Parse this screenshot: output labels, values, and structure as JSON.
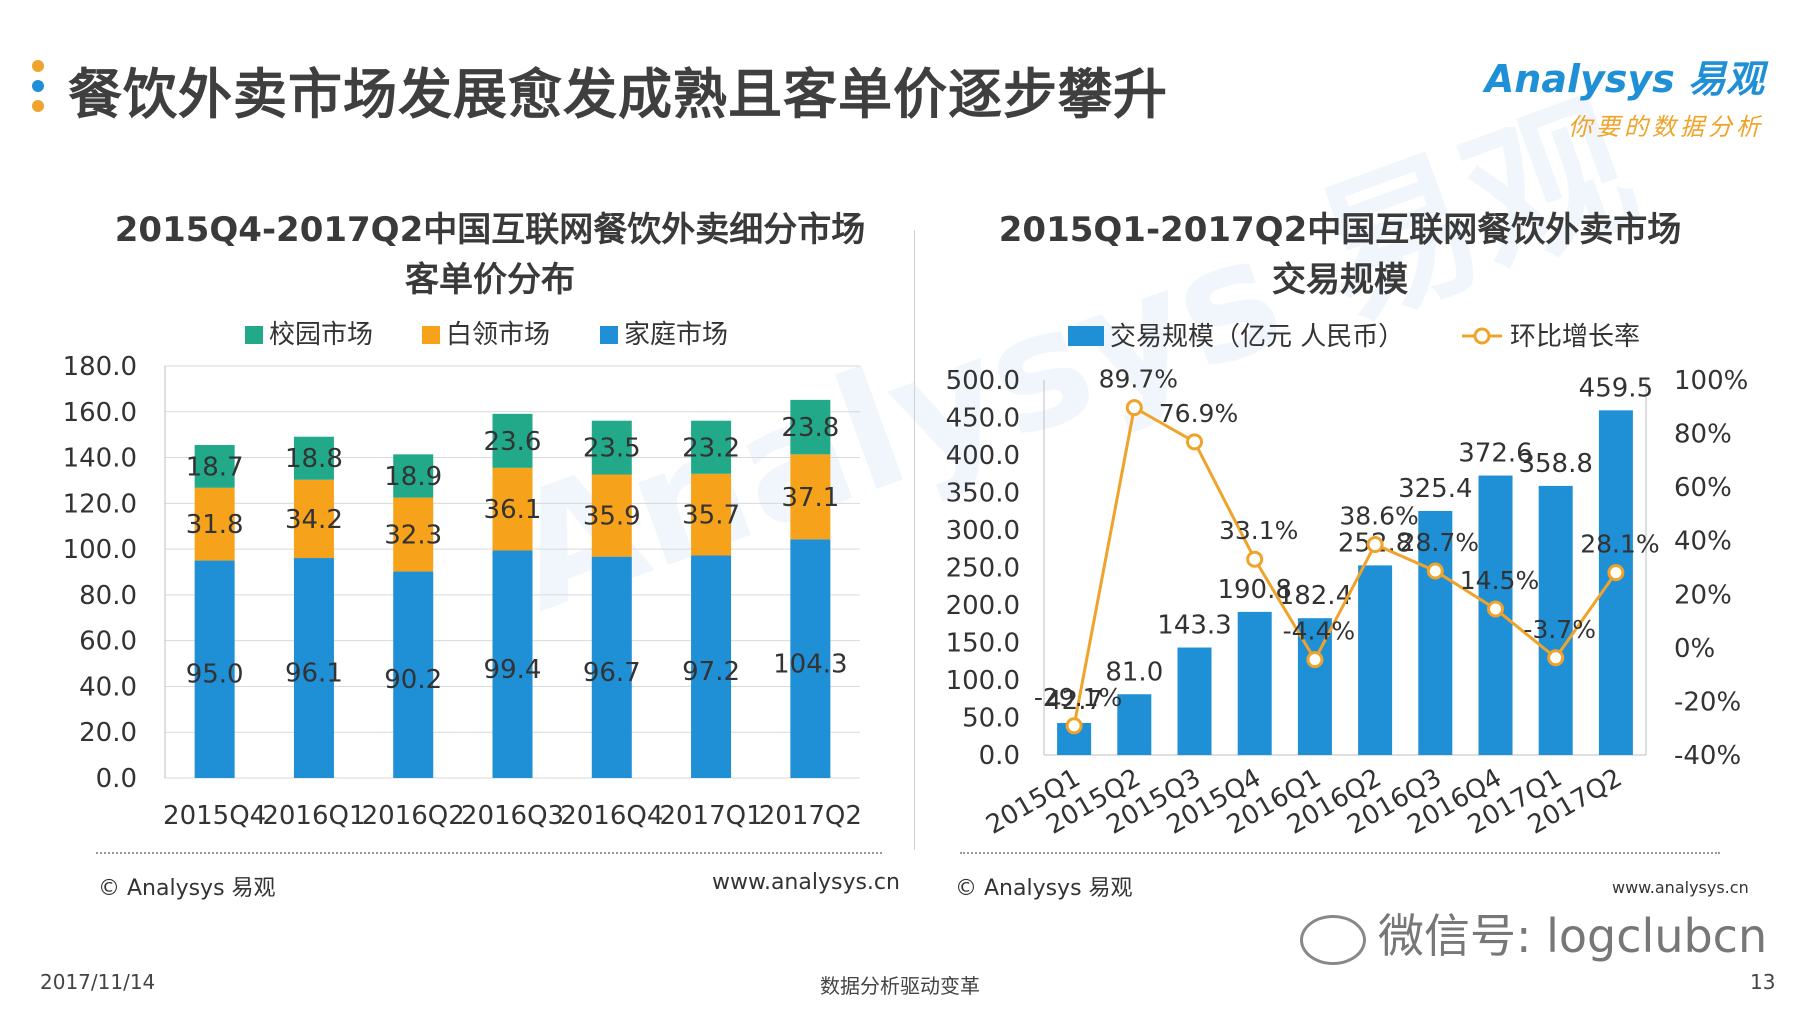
{
  "page": {
    "title": "餐饮外卖市场发展愈发成熟且客单价逐步攀升",
    "dots_colors": [
      "#f0a32a",
      "#1f8fd6",
      "#f0a32a"
    ],
    "logo_main": "Analysys 易观",
    "logo_sub": "你要的数据分析",
    "watermark": "Analysys 易观",
    "date": "2017/11/14",
    "footer_center": "数据分析驱动变革",
    "page_number": "13",
    "wechat": "微信号: logclubcn"
  },
  "left": {
    "title_line1": "2015Q4-2017Q2中国互联网餐饮外卖细分市场",
    "title_line2": "客单价分布",
    "source": "© Analysys 易观",
    "url": "www.analysys.cn"
  },
  "right": {
    "title_line1": "2015Q1-2017Q2中国互联网餐饮外卖市场",
    "title_line2": "交易规模",
    "source": "© Analysys 易观",
    "url": "www.analysys.cn"
  },
  "chart_data": [
    {
      "type": "bar",
      "stacked": true,
      "title": "2015Q4-2017Q2中国互联网餐饮外卖细分市场 客单价分布",
      "categories": [
        "2015Q4",
        "2016Q1",
        "2016Q2",
        "2016Q3",
        "2016Q4",
        "2017Q1",
        "2017Q2"
      ],
      "series": [
        {
          "name": "家庭市场",
          "color": "#1f8fd6",
          "values": [
            95.0,
            96.1,
            90.2,
            99.4,
            96.7,
            97.2,
            104.3
          ]
        },
        {
          "name": "白领市场",
          "color": "#f7a21b",
          "values": [
            31.8,
            34.2,
            32.3,
            36.1,
            35.9,
            35.7,
            37.1
          ]
        },
        {
          "name": "校园市场",
          "color": "#21a989",
          "values": [
            18.7,
            18.8,
            18.9,
            23.6,
            23.5,
            23.2,
            23.8
          ]
        }
      ],
      "legend_order": [
        "校园市场",
        "白领市场",
        "家庭市场"
      ],
      "yticks": [
        "0.0",
        "20.0",
        "40.0",
        "60.0",
        "80.0",
        "100.0",
        "120.0",
        "140.0",
        "160.0",
        "180.0"
      ],
      "ylim": [
        0,
        180
      ],
      "grid": true,
      "legend_position": "top"
    },
    {
      "type": "bar+line",
      "title": "2015Q1-2017Q2中国互联网餐饮外卖市场 交易规模",
      "categories": [
        "2015Q1",
        "2015Q2",
        "2015Q3",
        "2015Q4",
        "2016Q1",
        "2016Q2",
        "2016Q3",
        "2016Q4",
        "2017Q1",
        "2017Q2"
      ],
      "bar_series": {
        "name": "交易规模（亿元 人民币）",
        "color": "#1f8fd6",
        "values": [
          42.7,
          81.0,
          143.3,
          190.8,
          182.4,
          252.8,
          325.4,
          372.6,
          358.8,
          459.5
        ],
        "labels": [
          "42.7",
          "81.0",
          "143.3",
          "190.8",
          "182.4",
          "252.8",
          "325.4",
          "372.6",
          "358.8",
          "459.5"
        ]
      },
      "line_series": {
        "name": "环比增长率",
        "color": "#f0a32a",
        "values": [
          -29.1,
          89.7,
          76.9,
          33.1,
          -4.4,
          38.6,
          28.7,
          14.5,
          -3.7,
          28.1
        ],
        "labels": [
          "-29.1%",
          "89.7%",
          "76.9%",
          "33.1%",
          "-4.4%",
          "38.6%",
          "28.7%",
          "14.5%",
          "-3.7%",
          "28.1%"
        ]
      },
      "y_left_ticks": [
        "0.0",
        "50.0",
        "100.0",
        "150.0",
        "200.0",
        "250.0",
        "300.0",
        "350.0",
        "400.0",
        "450.0",
        "500.0"
      ],
      "y_left_lim": [
        0,
        500
      ],
      "y_right_ticks": [
        "-40%",
        "-20%",
        "0%",
        "20%",
        "40%",
        "60%",
        "80%",
        "100%"
      ],
      "y_right_lim": [
        -40,
        100
      ],
      "grid": false,
      "legend_position": "top"
    }
  ]
}
